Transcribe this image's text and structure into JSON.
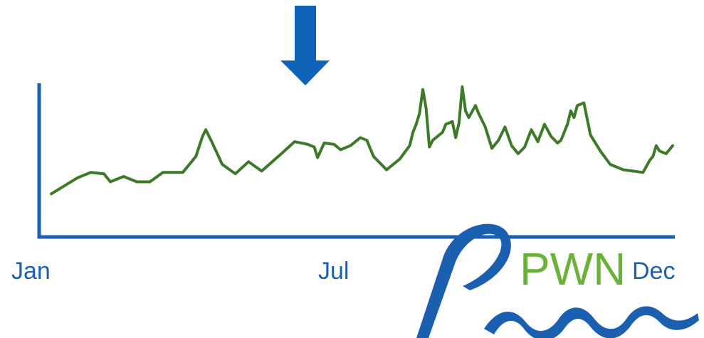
{
  "chart_data": {
    "type": "line",
    "title": "",
    "xlabel": "",
    "ylabel": "",
    "x_tick_labels": [
      "Jan",
      "Jul",
      "Dec"
    ],
    "grid": false,
    "legend": "none",
    "series": [
      {
        "values": [
          [
            0.0,
            0.2
          ],
          [
            0.04,
            0.32
          ],
          [
            0.06,
            0.36
          ],
          [
            0.08,
            0.35
          ],
          [
            0.09,
            0.29
          ],
          [
            0.11,
            0.33
          ],
          [
            0.13,
            0.29
          ],
          [
            0.15,
            0.29
          ],
          [
            0.17,
            0.36
          ],
          [
            0.2,
            0.36
          ],
          [
            0.22,
            0.48
          ],
          [
            0.23,
            0.63
          ],
          [
            0.235,
            0.68
          ],
          [
            0.245,
            0.58
          ],
          [
            0.26,
            0.42
          ],
          [
            0.28,
            0.35
          ],
          [
            0.3,
            0.44
          ],
          [
            0.32,
            0.37
          ],
          [
            0.35,
            0.5
          ],
          [
            0.37,
            0.59
          ],
          [
            0.39,
            0.57
          ],
          [
            0.4,
            0.55
          ],
          [
            0.405,
            0.47
          ],
          [
            0.415,
            0.58
          ],
          [
            0.43,
            0.57
          ],
          [
            0.44,
            0.53
          ],
          [
            0.455,
            0.56
          ],
          [
            0.47,
            0.62
          ],
          [
            0.48,
            0.6
          ],
          [
            0.49,
            0.48
          ],
          [
            0.51,
            0.38
          ],
          [
            0.53,
            0.46
          ],
          [
            0.545,
            0.56
          ],
          [
            0.55,
            0.66
          ],
          [
            0.555,
            0.72
          ],
          [
            0.56,
            0.8
          ],
          [
            0.565,
            0.98
          ],
          [
            0.57,
            0.84
          ],
          [
            0.575,
            0.55
          ],
          [
            0.58,
            0.6
          ],
          [
            0.59,
            0.64
          ],
          [
            0.595,
            0.66
          ],
          [
            0.6,
            0.72
          ],
          [
            0.61,
            0.74
          ],
          [
            0.615,
            0.62
          ],
          [
            0.62,
            0.73
          ],
          [
            0.625,
            1.0
          ],
          [
            0.63,
            0.82
          ],
          [
            0.635,
            0.77
          ],
          [
            0.645,
            0.86
          ],
          [
            0.65,
            0.8
          ],
          [
            0.66,
            0.7
          ],
          [
            0.67,
            0.54
          ],
          [
            0.68,
            0.6
          ],
          [
            0.69,
            0.7
          ],
          [
            0.7,
            0.56
          ],
          [
            0.71,
            0.5
          ],
          [
            0.72,
            0.55
          ],
          [
            0.73,
            0.68
          ],
          [
            0.74,
            0.59
          ],
          [
            0.75,
            0.72
          ],
          [
            0.76,
            0.63
          ],
          [
            0.77,
            0.58
          ],
          [
            0.775,
            0.6
          ],
          [
            0.785,
            0.72
          ],
          [
            0.79,
            0.82
          ],
          [
            0.795,
            0.77
          ],
          [
            0.8,
            0.86
          ],
          [
            0.81,
            0.88
          ],
          [
            0.82,
            0.64
          ],
          [
            0.835,
            0.52
          ],
          [
            0.85,
            0.42
          ],
          [
            0.87,
            0.38
          ],
          [
            0.9,
            0.36
          ],
          [
            0.91,
            0.45
          ],
          [
            0.915,
            0.48
          ],
          [
            0.92,
            0.56
          ],
          [
            0.925,
            0.52
          ],
          [
            0.935,
            0.5
          ],
          [
            0.945,
            0.56
          ]
        ]
      }
    ]
  }
}
